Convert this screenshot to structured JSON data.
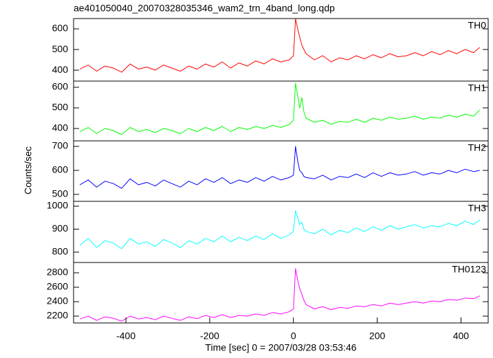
{
  "chart_data": [
    {
      "type": "line",
      "title": "ae401050040_20070328035346_wam2_trn_4band_long.qdp",
      "x": [
        -510,
        -490,
        -470,
        -450,
        -430,
        -410,
        -390,
        -370,
        -350,
        -330,
        -310,
        -290,
        -270,
        -250,
        -230,
        -210,
        -190,
        -170,
        -150,
        -130,
        -110,
        -90,
        -70,
        -50,
        -30,
        -10,
        0,
        5,
        10,
        15,
        20,
        25,
        30,
        50,
        70,
        90,
        110,
        130,
        150,
        170,
        190,
        210,
        230,
        250,
        270,
        290,
        310,
        330,
        350,
        370,
        390,
        410,
        430,
        445
      ],
      "series": [
        {
          "name": "TH0",
          "color": "#ff0000",
          "values": [
            405,
            425,
            395,
            420,
            410,
            390,
            430,
            405,
            415,
            400,
            425,
            410,
            395,
            420,
            405,
            430,
            415,
            440,
            410,
            435,
            420,
            445,
            430,
            455,
            440,
            450,
            470,
            650,
            600,
            560,
            520,
            500,
            480,
            450,
            470,
            440,
            460,
            450,
            470,
            455,
            475,
            460,
            480,
            465,
            470,
            485,
            470,
            490,
            475,
            495,
            480,
            500,
            485,
            510
          ]
        }
      ],
      "xlim": [
        -525,
        465
      ],
      "ylim": [
        347,
        650
      ],
      "yticks": [
        400,
        500,
        600
      ]
    },
    {
      "type": "line",
      "x": [
        -510,
        -490,
        -470,
        -450,
        -430,
        -410,
        -390,
        -370,
        -350,
        -330,
        -310,
        -290,
        -270,
        -250,
        -230,
        -210,
        -190,
        -170,
        -150,
        -130,
        -110,
        -90,
        -70,
        -50,
        -30,
        -10,
        0,
        5,
        10,
        15,
        20,
        25,
        30,
        50,
        70,
        90,
        110,
        130,
        150,
        170,
        190,
        210,
        230,
        250,
        270,
        290,
        310,
        330,
        350,
        370,
        390,
        410,
        430,
        445
      ],
      "series": [
        {
          "name": "TH1",
          "color": "#00ff00",
          "values": [
            385,
            405,
            375,
            400,
            390,
            370,
            405,
            385,
            395,
            380,
            400,
            390,
            375,
            400,
            385,
            405,
            390,
            410,
            385,
            405,
            395,
            410,
            400,
            415,
            405,
            420,
            440,
            620,
            560,
            500,
            550,
            480,
            450,
            430,
            440,
            420,
            435,
            430,
            445,
            430,
            450,
            440,
            455,
            445,
            450,
            460,
            445,
            455,
            450,
            465,
            455,
            470,
            460,
            490
          ]
        }
      ],
      "xlim": [
        -525,
        465
      ],
      "ylim": [
        340,
        630
      ],
      "yticks": [
        400,
        500,
        600
      ]
    },
    {
      "type": "line",
      "ylabel": "Counts/sec",
      "x": [
        -510,
        -490,
        -470,
        -450,
        -430,
        -410,
        -390,
        -370,
        -350,
        -330,
        -310,
        -290,
        -270,
        -250,
        -230,
        -210,
        -190,
        -170,
        -150,
        -130,
        -110,
        -90,
        -70,
        -50,
        -30,
        -10,
        0,
        5,
        10,
        15,
        20,
        25,
        30,
        50,
        70,
        90,
        110,
        130,
        150,
        170,
        190,
        210,
        230,
        250,
        270,
        290,
        310,
        330,
        350,
        370,
        390,
        410,
        430,
        445
      ],
      "series": [
        {
          "name": "TH2",
          "color": "#0000ff",
          "values": [
            540,
            560,
            530,
            555,
            545,
            525,
            565,
            540,
            550,
            535,
            560,
            545,
            530,
            555,
            540,
            565,
            550,
            570,
            545,
            560,
            550,
            570,
            555,
            575,
            560,
            570,
            580,
            700,
            640,
            600,
            590,
            575,
            570,
            565,
            580,
            560,
            575,
            570,
            585,
            570,
            590,
            575,
            590,
            580,
            585,
            595,
            580,
            590,
            585,
            600,
            590,
            605,
            595,
            600
          ]
        }
      ],
      "xlim": [
        -525,
        465
      ],
      "ylim": [
        471,
        723
      ],
      "yticks": [
        500,
        600,
        700
      ]
    },
    {
      "type": "line",
      "x": [
        -510,
        -490,
        -470,
        -450,
        -430,
        -410,
        -390,
        -370,
        -350,
        -330,
        -310,
        -290,
        -270,
        -250,
        -230,
        -210,
        -190,
        -170,
        -150,
        -130,
        -110,
        -90,
        -70,
        -50,
        -30,
        -10,
        0,
        5,
        10,
        15,
        20,
        25,
        30,
        50,
        70,
        90,
        110,
        130,
        150,
        170,
        190,
        210,
        230,
        250,
        270,
        290,
        310,
        330,
        350,
        370,
        390,
        410,
        430,
        445
      ],
      "series": [
        {
          "name": "TH3",
          "color": "#00ffff",
          "values": [
            830,
            860,
            820,
            850,
            840,
            815,
            860,
            835,
            845,
            825,
            855,
            840,
            820,
            850,
            835,
            860,
            845,
            870,
            845,
            865,
            850,
            870,
            855,
            880,
            860,
            875,
            890,
            980,
            950,
            920,
            930,
            900,
            890,
            880,
            900,
            875,
            895,
            885,
            905,
            890,
            910,
            895,
            915,
            900,
            910,
            920,
            905,
            915,
            910,
            925,
            915,
            935,
            920,
            940
          ]
        }
      ],
      "xlim": [
        -525,
        465
      ],
      "ylim": [
        755,
        1021
      ],
      "yticks": [
        800,
        900,
        1000
      ]
    },
    {
      "type": "line",
      "xlabel": "Time [sec] 0 = 2007/03/28 03:53:46",
      "x": [
        -510,
        -490,
        -470,
        -450,
        -430,
        -410,
        -390,
        -370,
        -350,
        -330,
        -310,
        -290,
        -270,
        -250,
        -230,
        -210,
        -190,
        -170,
        -150,
        -130,
        -110,
        -90,
        -70,
        -50,
        -30,
        -10,
        0,
        5,
        10,
        15,
        20,
        25,
        30,
        50,
        70,
        90,
        110,
        130,
        150,
        170,
        190,
        210,
        230,
        250,
        270,
        290,
        310,
        330,
        350,
        370,
        390,
        410,
        430,
        445
      ],
      "series": [
        {
          "name": "TH0123",
          "color": "#ff00ff",
          "values": [
            2160,
            2200,
            2140,
            2190,
            2170,
            2130,
            2200,
            2160,
            2180,
            2150,
            2200,
            2170,
            2140,
            2190,
            2165,
            2210,
            2180,
            2220,
            2180,
            2210,
            2200,
            2230,
            2210,
            2250,
            2230,
            2260,
            2300,
            2860,
            2700,
            2580,
            2500,
            2420,
            2360,
            2300,
            2330,
            2290,
            2320,
            2310,
            2340,
            2330,
            2360,
            2340,
            2380,
            2360,
            2380,
            2400,
            2380,
            2410,
            2400,
            2430,
            2420,
            2450,
            2440,
            2480
          ]
        }
      ],
      "xlim": [
        -525,
        465
      ],
      "xticks": [
        -400,
        -200,
        0,
        200,
        400
      ],
      "ylim": [
        2105,
        2943
      ],
      "yticks": [
        2200,
        2400,
        2600,
        2800
      ]
    }
  ]
}
